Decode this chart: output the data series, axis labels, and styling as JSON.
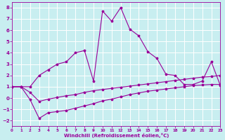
{
  "xlabel": "Windchill (Refroidissement éolien,°C)",
  "bg_color": "#c8eef0",
  "grid_color": "#ffffff",
  "line_color": "#990099",
  "xlim": [
    0,
    23
  ],
  "ylim": [
    -2.5,
    8.5
  ],
  "xticks": [
    0,
    1,
    2,
    3,
    4,
    5,
    6,
    7,
    8,
    9,
    10,
    11,
    12,
    13,
    14,
    15,
    16,
    17,
    18,
    19,
    20,
    21,
    22,
    23
  ],
  "yticks": [
    -2,
    -1,
    0,
    1,
    2,
    3,
    4,
    5,
    6,
    7,
    8
  ],
  "series1_x": [
    0,
    1,
    2,
    3,
    4,
    5,
    6,
    7,
    8,
    9,
    10,
    11,
    12,
    13,
    14,
    15,
    16,
    17,
    18,
    19,
    20,
    21,
    22,
    23
  ],
  "series1_y": [
    1.0,
    1.0,
    1.0,
    2.0,
    2.5,
    3.0,
    3.2,
    4.0,
    4.2,
    1.5,
    7.7,
    6.8,
    8.0,
    6.1,
    5.5,
    4.1,
    3.5,
    2.1,
    2.0,
    1.2,
    1.2,
    1.5,
    3.2,
    1.1
  ],
  "series2_x": [
    0,
    1,
    2,
    3,
    4,
    5,
    6,
    7,
    8,
    9,
    10,
    11,
    12,
    13,
    14,
    15,
    16,
    17,
    18,
    19,
    20,
    21,
    22,
    23
  ],
  "series2_y": [
    1.0,
    1.0,
    -0.15,
    -1.8,
    -1.3,
    -1.2,
    -1.1,
    -0.9,
    -0.7,
    -0.5,
    -0.25,
    -0.1,
    0.1,
    0.3,
    0.45,
    0.6,
    0.7,
    0.8,
    0.9,
    1.0,
    1.1,
    1.15,
    1.2,
    1.2
  ],
  "series3_x": [
    0,
    1,
    2,
    3,
    4,
    5,
    6,
    7,
    8,
    9,
    10,
    11,
    12,
    13,
    14,
    15,
    16,
    17,
    18,
    19,
    20,
    21,
    22,
    23
  ],
  "series3_y": [
    1.0,
    1.0,
    0.5,
    -0.3,
    -0.1,
    0.05,
    0.2,
    0.3,
    0.5,
    0.65,
    0.75,
    0.85,
    0.95,
    1.05,
    1.15,
    1.25,
    1.35,
    1.45,
    1.55,
    1.65,
    1.75,
    1.85,
    1.9,
    2.0
  ]
}
